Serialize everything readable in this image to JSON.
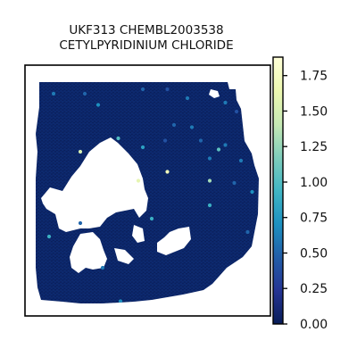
{
  "chart_data": {
    "type": "heatmap",
    "title_lines": [
      "UKF313 CHEMBL2003538",
      "CETYLPYRIDINIUM CHLORIDE"
    ],
    "xlabel": "",
    "ylabel": "",
    "grid": false,
    "legend": "none",
    "colormap": "YlGnBu",
    "colorbar": {
      "vmin": 0.0,
      "vmax": 1.88,
      "ticks": [
        0.0,
        0.25,
        0.5,
        0.75,
        1.0,
        1.25,
        1.5,
        1.75
      ],
      "tick_labels": [
        "0.00",
        "0.25",
        "0.50",
        "0.75",
        "1.00",
        "1.25",
        "1.50",
        "1.75"
      ]
    },
    "background_value": 0.0,
    "colors": {
      "low": "#081d58",
      "mid": "#1d91c0",
      "high": "#ffffd9",
      "frame": "#000000"
    },
    "highlighted_spots": [
      {
        "x": 0.08,
        "y": 0.06,
        "value": 0.6
      },
      {
        "x": 0.22,
        "y": 0.06,
        "value": 0.5
      },
      {
        "x": 0.48,
        "y": 0.04,
        "value": 0.5
      },
      {
        "x": 0.59,
        "y": 0.04,
        "value": 0.4
      },
      {
        "x": 0.28,
        "y": 0.11,
        "value": 0.7
      },
      {
        "x": 0.68,
        "y": 0.08,
        "value": 0.6
      },
      {
        "x": 0.85,
        "y": 0.1,
        "value": 0.6
      },
      {
        "x": 0.9,
        "y": 0.14,
        "value": 0.4
      },
      {
        "x": 0.2,
        "y": 0.32,
        "value": 1.5
      },
      {
        "x": 0.62,
        "y": 0.2,
        "value": 0.5
      },
      {
        "x": 0.7,
        "y": 0.21,
        "value": 0.6
      },
      {
        "x": 0.48,
        "y": 0.3,
        "value": 0.8
      },
      {
        "x": 0.37,
        "y": 0.26,
        "value": 1.0
      },
      {
        "x": 0.58,
        "y": 0.27,
        "value": 0.4
      },
      {
        "x": 0.74,
        "y": 0.27,
        "value": 0.5
      },
      {
        "x": 0.82,
        "y": 0.31,
        "value": 1.05
      },
      {
        "x": 0.85,
        "y": 0.29,
        "value": 0.6
      },
      {
        "x": 0.78,
        "y": 0.35,
        "value": 0.6
      },
      {
        "x": 0.92,
        "y": 0.36,
        "value": 0.6
      },
      {
        "x": 0.59,
        "y": 0.41,
        "value": 1.7
      },
      {
        "x": 0.89,
        "y": 0.46,
        "value": 0.5
      },
      {
        "x": 0.78,
        "y": 0.45,
        "value": 1.3
      },
      {
        "x": 0.46,
        "y": 0.45,
        "value": 1.6
      },
      {
        "x": 0.97,
        "y": 0.5,
        "value": 0.7
      },
      {
        "x": 0.78,
        "y": 0.56,
        "value": 0.9
      },
      {
        "x": 0.52,
        "y": 0.62,
        "value": 0.9
      },
      {
        "x": 0.2,
        "y": 0.64,
        "value": 0.5
      },
      {
        "x": 0.06,
        "y": 0.7,
        "value": 0.9
      },
      {
        "x": 0.95,
        "y": 0.68,
        "value": 0.5
      },
      {
        "x": 0.3,
        "y": 0.84,
        "value": 0.6
      },
      {
        "x": 0.38,
        "y": 0.99,
        "value": 0.7
      }
    ]
  }
}
